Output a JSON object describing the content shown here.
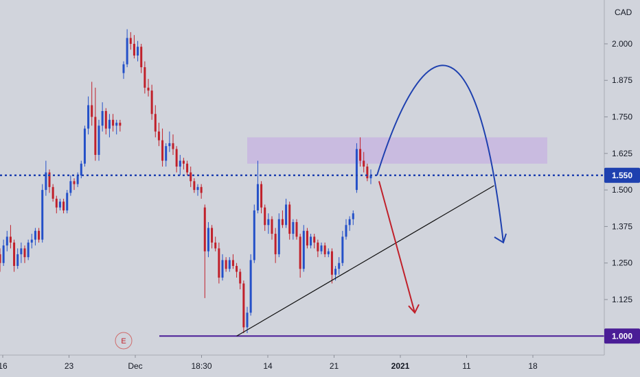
{
  "chart_data": {
    "type": "candlestick",
    "currency_label": "CAD",
    "y_ticks": [
      2.0,
      1.875,
      1.75,
      1.625,
      1.5,
      1.375,
      1.25,
      1.125
    ],
    "y_tick_labels": [
      "2.000",
      "1.875",
      "1.750",
      "1.625",
      "1.500",
      "1.375",
      "1.250",
      "1.125"
    ],
    "ylim": [
      0.935,
      2.15
    ],
    "x_tick_labels": [
      "16",
      "23",
      "Dec",
      "18:30",
      "14",
      "21",
      "2021",
      "11",
      "18"
    ],
    "x_tick_bold": [
      false,
      false,
      false,
      false,
      false,
      false,
      true,
      false,
      false
    ],
    "price_marker_current": {
      "value": 1.55,
      "label": "1.550",
      "color": "#1e40af"
    },
    "price_marker_support": {
      "value": 1.0,
      "label": "1.000",
      "color": "#4a1d96"
    },
    "resistance_zone": {
      "from": 1.59,
      "to": 1.68,
      "color": "#c8b6e0"
    },
    "up_color": "#2450c8",
    "down_color": "#c0202a",
    "earnings_badge": "E",
    "candles": [
      [
        1.28,
        1.3,
        1.22,
        1.25
      ],
      [
        1.25,
        1.33,
        1.24,
        1.31
      ],
      [
        1.31,
        1.36,
        1.29,
        1.34
      ],
      [
        1.34,
        1.38,
        1.3,
        1.32
      ],
      [
        1.32,
        1.33,
        1.22,
        1.24
      ],
      [
        1.24,
        1.3,
        1.23,
        1.28
      ],
      [
        1.28,
        1.32,
        1.25,
        1.3
      ],
      [
        1.3,
        1.31,
        1.25,
        1.27
      ],
      [
        1.27,
        1.33,
        1.26,
        1.32
      ],
      [
        1.32,
        1.35,
        1.3,
        1.33
      ],
      [
        1.33,
        1.37,
        1.31,
        1.36
      ],
      [
        1.36,
        1.37,
        1.32,
        1.33
      ],
      [
        1.33,
        1.52,
        1.32,
        1.5
      ],
      [
        1.5,
        1.6,
        1.48,
        1.56
      ],
      [
        1.56,
        1.57,
        1.49,
        1.51
      ],
      [
        1.51,
        1.52,
        1.46,
        1.47
      ],
      [
        1.47,
        1.48,
        1.42,
        1.44
      ],
      [
        1.44,
        1.47,
        1.43,
        1.46
      ],
      [
        1.46,
        1.47,
        1.42,
        1.43
      ],
      [
        1.43,
        1.5,
        1.42,
        1.49
      ],
      [
        1.49,
        1.55,
        1.48,
        1.53
      ],
      [
        1.53,
        1.54,
        1.5,
        1.52
      ],
      [
        1.52,
        1.56,
        1.51,
        1.55
      ],
      [
        1.55,
        1.6,
        1.54,
        1.59
      ],
      [
        1.59,
        1.72,
        1.58,
        1.71
      ],
      [
        1.71,
        1.82,
        1.69,
        1.79
      ],
      [
        1.79,
        1.87,
        1.72,
        1.75
      ],
      [
        1.75,
        1.85,
        1.6,
        1.62
      ],
      [
        1.62,
        1.74,
        1.6,
        1.72
      ],
      [
        1.72,
        1.8,
        1.7,
        1.77
      ],
      [
        1.77,
        1.78,
        1.69,
        1.71
      ],
      [
        1.71,
        1.76,
        1.68,
        1.74
      ],
      [
        1.74,
        1.76,
        1.7,
        1.72
      ],
      [
        1.72,
        1.74,
        1.69,
        1.73
      ],
      [
        1.73,
        1.74,
        1.7,
        1.72
      ],
      [
        1.9,
        1.94,
        1.88,
        1.93
      ],
      [
        1.93,
        2.05,
        1.92,
        2.02
      ],
      [
        2.02,
        2.04,
        1.98,
        2.0
      ],
      [
        2.0,
        2.03,
        1.95,
        1.96
      ],
      [
        1.96,
        2.01,
        1.94,
        1.99
      ],
      [
        1.99,
        2.0,
        1.9,
        1.92
      ],
      [
        1.92,
        1.94,
        1.83,
        1.85
      ],
      [
        1.85,
        1.88,
        1.82,
        1.84
      ],
      [
        1.84,
        1.86,
        1.74,
        1.76
      ],
      [
        1.76,
        1.79,
        1.68,
        1.7
      ],
      [
        1.7,
        1.73,
        1.65,
        1.67
      ],
      [
        1.67,
        1.71,
        1.58,
        1.6
      ],
      [
        1.6,
        1.66,
        1.58,
        1.65
      ],
      [
        1.65,
        1.7,
        1.63,
        1.66
      ],
      [
        1.66,
        1.69,
        1.62,
        1.64
      ],
      [
        1.64,
        1.65,
        1.56,
        1.58
      ],
      [
        1.58,
        1.62,
        1.55,
        1.6
      ],
      [
        1.6,
        1.61,
        1.57,
        1.59
      ],
      [
        1.59,
        1.6,
        1.55,
        1.56
      ],
      [
        1.56,
        1.58,
        1.51,
        1.53
      ],
      [
        1.53,
        1.54,
        1.49,
        1.5
      ],
      [
        1.5,
        1.52,
        1.48,
        1.51
      ],
      [
        1.51,
        1.52,
        1.47,
        1.49
      ],
      [
        1.44,
        1.45,
        1.13,
        1.29
      ],
      [
        1.29,
        1.39,
        1.27,
        1.37
      ],
      [
        1.37,
        1.38,
        1.3,
        1.32
      ],
      [
        1.32,
        1.34,
        1.29,
        1.3
      ],
      [
        1.3,
        1.32,
        1.18,
        1.2
      ],
      [
        1.2,
        1.28,
        1.19,
        1.26
      ],
      [
        1.26,
        1.27,
        1.22,
        1.23
      ],
      [
        1.23,
        1.27,
        1.22,
        1.26
      ],
      [
        1.26,
        1.28,
        1.23,
        1.24
      ],
      [
        1.24,
        1.25,
        1.2,
        1.22
      ],
      [
        1.22,
        1.23,
        1.16,
        1.18
      ],
      [
        1.18,
        1.19,
        1.01,
        1.03
      ],
      [
        1.03,
        1.1,
        1.01,
        1.08
      ],
      [
        1.08,
        1.28,
        1.07,
        1.26
      ],
      [
        1.26,
        1.45,
        1.25,
        1.43
      ],
      [
        1.43,
        1.6,
        1.42,
        1.52
      ],
      [
        1.52,
        1.53,
        1.42,
        1.44
      ],
      [
        1.44,
        1.45,
        1.36,
        1.38
      ],
      [
        1.38,
        1.42,
        1.35,
        1.4
      ],
      [
        1.4,
        1.41,
        1.33,
        1.35
      ],
      [
        1.35,
        1.37,
        1.25,
        1.28
      ],
      [
        1.28,
        1.42,
        1.27,
        1.4
      ],
      [
        1.4,
        1.43,
        1.37,
        1.38
      ],
      [
        1.38,
        1.47,
        1.37,
        1.45
      ],
      [
        1.45,
        1.46,
        1.33,
        1.35
      ],
      [
        1.35,
        1.4,
        1.33,
        1.39
      ],
      [
        1.39,
        1.4,
        1.33,
        1.34
      ],
      [
        1.34,
        1.35,
        1.2,
        1.23
      ],
      [
        1.23,
        1.38,
        1.22,
        1.36
      ],
      [
        1.36,
        1.37,
        1.3,
        1.31
      ],
      [
        1.31,
        1.35,
        1.3,
        1.34
      ],
      [
        1.34,
        1.35,
        1.3,
        1.32
      ],
      [
        1.32,
        1.33,
        1.27,
        1.29
      ],
      [
        1.29,
        1.32,
        1.28,
        1.31
      ],
      [
        1.31,
        1.32,
        1.27,
        1.28
      ],
      [
        1.28,
        1.3,
        1.27,
        1.29
      ],
      [
        1.29,
        1.3,
        1.18,
        1.21
      ],
      [
        1.21,
        1.24,
        1.19,
        1.23
      ],
      [
        1.23,
        1.27,
        1.21,
        1.25
      ],
      [
        1.25,
        1.36,
        1.24,
        1.34
      ],
      [
        1.34,
        1.4,
        1.33,
        1.38
      ],
      [
        1.38,
        1.41,
        1.36,
        1.4
      ],
      [
        1.4,
        1.43,
        1.38,
        1.42
      ],
      [
        1.5,
        1.66,
        1.49,
        1.64
      ],
      [
        1.64,
        1.68,
        1.58,
        1.6
      ],
      [
        1.6,
        1.63,
        1.56,
        1.58
      ],
      [
        1.58,
        1.59,
        1.53,
        1.54
      ],
      [
        1.54,
        1.57,
        1.52,
        1.55
      ]
    ],
    "annotations": [
      {
        "kind": "line",
        "points": [
          [
            344.6,
            1.0
          ],
          [
            719.5,
            1.515
          ]
        ],
        "color": "#111111"
      },
      {
        "kind": "arrow-curve",
        "points": [
          [
            549,
            1.55
          ],
          [
            618,
            1.93
          ],
          [
            695,
            1.82
          ],
          [
            733,
            1.32
          ]
        ],
        "color": "#1e40af"
      },
      {
        "kind": "arrow-line",
        "points": [
          [
            552,
            1.53
          ],
          [
            604,
            1.08
          ]
        ],
        "color": "#c0202a"
      }
    ]
  }
}
